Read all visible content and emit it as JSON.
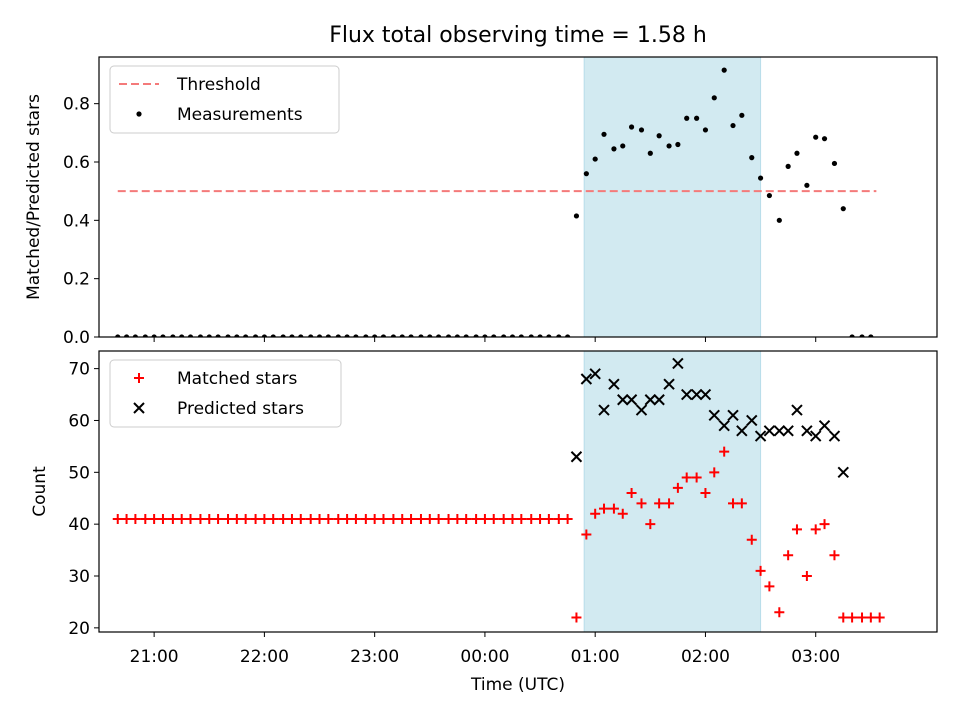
{
  "figure": {
    "title": "Flux total observing time = 1.58 h",
    "xlabel": "Time (UTC)",
    "x_tick_labels": [
      "21:00",
      "22:00",
      "23:00",
      "00:00",
      "01:00",
      "02:00",
      "03:00"
    ]
  },
  "chart_data": [
    {
      "type": "scatter",
      "ylabel": "Matched/Predicted stars",
      "xlim": [
        -3.5,
        4.1
      ],
      "ylim": [
        0.0,
        0.96
      ],
      "yticks": [
        "0.0",
        "0.2",
        "0.4",
        "0.6",
        "0.8"
      ],
      "shaded_interval": {
        "x": [
          0.9,
          2.5
        ],
        "color": "#add8e6"
      },
      "legend": {
        "position": "top-left",
        "entries": [
          "Threshold",
          "Measurements"
        ]
      },
      "threshold": {
        "name": "Threshold",
        "y": 0.5,
        "x_range": [
          -3.33,
          3.55
        ],
        "color": "#f47a7a",
        "style": "dashed"
      },
      "series": [
        {
          "name": "Measurements",
          "marker": "dot",
          "color": "#000000",
          "x": [
            -3.33,
            -3.25,
            -3.17,
            -3.08,
            -3.0,
            -2.92,
            -2.83,
            -2.75,
            -2.67,
            -2.58,
            -2.5,
            -2.42,
            -2.33,
            -2.25,
            -2.17,
            -2.08,
            -2.0,
            -1.92,
            -1.83,
            -1.75,
            -1.67,
            -1.58,
            -1.5,
            -1.42,
            -1.33,
            -1.25,
            -1.17,
            -1.08,
            -1.0,
            -0.92,
            -0.83,
            -0.75,
            -0.67,
            -0.58,
            -0.5,
            -0.42,
            -0.33,
            -0.25,
            -0.17,
            -0.08,
            0.0,
            0.08,
            0.17,
            0.25,
            0.33,
            0.42,
            0.5,
            0.58,
            0.67,
            0.75,
            0.83,
            0.92,
            1.0,
            1.08,
            1.17,
            1.25,
            1.33,
            1.42,
            1.5,
            1.58,
            1.67,
            1.75,
            1.83,
            1.92,
            2.0,
            2.08,
            2.17,
            2.25,
            2.33,
            2.42,
            2.5,
            2.58,
            2.67,
            2.75,
            2.83,
            2.92,
            3.0,
            3.08,
            3.17,
            3.25,
            3.33,
            3.42,
            3.5
          ],
          "y": [
            0,
            0,
            0,
            0,
            0,
            0,
            0,
            0,
            0,
            0,
            0,
            0,
            0,
            0,
            0,
            0,
            0,
            0,
            0,
            0,
            0,
            0,
            0,
            0,
            0,
            0,
            0,
            0,
            0,
            0,
            0,
            0,
            0,
            0,
            0,
            0,
            0,
            0,
            0,
            0,
            0,
            0,
            0,
            0,
            0,
            0,
            0,
            0,
            0,
            0,
            0.415,
            0.56,
            0.61,
            0.695,
            0.645,
            0.655,
            0.72,
            0.71,
            0.63,
            0.69,
            0.655,
            0.66,
            0.75,
            0.75,
            0.71,
            0.82,
            0.915,
            0.725,
            0.76,
            0.615,
            0.545,
            0.485,
            0.4,
            0.585,
            0.63,
            0.52,
            0.685,
            0.68,
            0.595,
            0.44,
            0,
            0,
            0
          ]
        }
      ]
    },
    {
      "type": "scatter",
      "ylabel": "Count",
      "xlim": [
        -3.5,
        4.1
      ],
      "ylim": [
        19.2,
        73.4
      ],
      "yticks": [
        "20",
        "30",
        "40",
        "50",
        "60",
        "70"
      ],
      "shaded_interval": {
        "x": [
          0.9,
          2.5
        ],
        "color": "#add8e6"
      },
      "legend": {
        "position": "top-left",
        "entries": [
          "Matched stars",
          "Predicted stars"
        ]
      },
      "series": [
        {
          "name": "Matched stars",
          "marker": "plus",
          "color": "#ff0000",
          "x": [
            -3.33,
            -3.25,
            -3.17,
            -3.08,
            -3.0,
            -2.92,
            -2.83,
            -2.75,
            -2.67,
            -2.58,
            -2.5,
            -2.42,
            -2.33,
            -2.25,
            -2.17,
            -2.08,
            -2.0,
            -1.92,
            -1.83,
            -1.75,
            -1.67,
            -1.58,
            -1.5,
            -1.42,
            -1.33,
            -1.25,
            -1.17,
            -1.08,
            -1.0,
            -0.92,
            -0.83,
            -0.75,
            -0.67,
            -0.58,
            -0.5,
            -0.42,
            -0.33,
            -0.25,
            -0.17,
            -0.08,
            0.0,
            0.08,
            0.17,
            0.25,
            0.33,
            0.42,
            0.5,
            0.58,
            0.67,
            0.75,
            0.83,
            0.92,
            1.0,
            1.08,
            1.17,
            1.25,
            1.33,
            1.42,
            1.5,
            1.58,
            1.67,
            1.75,
            1.83,
            1.92,
            2.0,
            2.08,
            2.17,
            2.25,
            2.33,
            2.42,
            2.5,
            2.58,
            2.67,
            2.75,
            2.83,
            2.92,
            3.0,
            3.08,
            3.17,
            3.25,
            3.33,
            3.42,
            3.5,
            3.58
          ],
          "y": [
            41,
            41,
            41,
            41,
            41,
            41,
            41,
            41,
            41,
            41,
            41,
            41,
            41,
            41,
            41,
            41,
            41,
            41,
            41,
            41,
            41,
            41,
            41,
            41,
            41,
            41,
            41,
            41,
            41,
            41,
            41,
            41,
            41,
            41,
            41,
            41,
            41,
            41,
            41,
            41,
            41,
            41,
            41,
            41,
            41,
            41,
            41,
            41,
            41,
            41,
            22,
            38,
            42,
            43,
            43,
            42,
            46,
            44,
            40,
            44,
            44,
            47,
            49,
            49,
            46,
            50,
            54,
            44,
            44,
            37,
            31,
            28,
            23,
            34,
            39,
            30,
            39,
            40,
            34,
            22,
            22,
            22,
            22,
            22
          ]
        },
        {
          "name": "Predicted stars",
          "marker": "x",
          "color": "#000000",
          "x": [
            0.83,
            0.92,
            1.0,
            1.08,
            1.17,
            1.25,
            1.33,
            1.42,
            1.5,
            1.58,
            1.67,
            1.75,
            1.83,
            1.92,
            2.0,
            2.08,
            2.17,
            2.25,
            2.33,
            2.42,
            2.5,
            2.58,
            2.67,
            2.75,
            2.83,
            2.92,
            3.0,
            3.08,
            3.17,
            3.25
          ],
          "y": [
            53,
            68,
            69,
            62,
            67,
            64,
            64,
            62,
            64,
            64,
            67,
            71,
            65,
            65,
            65,
            61,
            59,
            61,
            58,
            60,
            57,
            58,
            58,
            58,
            62,
            58,
            57,
            59,
            57,
            50
          ]
        }
      ]
    }
  ]
}
